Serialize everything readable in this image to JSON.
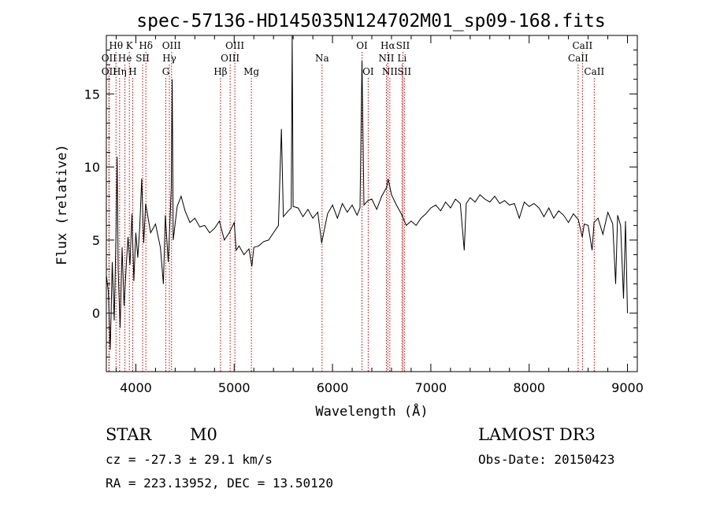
{
  "chart_data": {
    "type": "line",
    "title": "spec-57136-HD145035N124702M01_sp09-168.fits",
    "xlabel": "Wavelength (Å)",
    "ylabel": "Flux (relative)",
    "xlim": [
      3700,
      9100
    ],
    "ylim": [
      -4,
      19
    ],
    "xticks": [
      4000,
      5000,
      6000,
      7000,
      8000,
      9000
    ],
    "yticks": [
      0,
      5,
      10,
      15
    ],
    "grid": false,
    "series": [
      {
        "name": "spectrum",
        "points": [
          [
            3700,
            2.6
          ],
          [
            3720,
            1.5
          ],
          [
            3740,
            -2.5
          ],
          [
            3760,
            3.5
          ],
          [
            3780,
            -0.5
          ],
          [
            3800,
            6.0
          ],
          [
            3810,
            10.7
          ],
          [
            3820,
            3.0
          ],
          [
            3840,
            -1.0
          ],
          [
            3860,
            4.5
          ],
          [
            3880,
            0.5
          ],
          [
            3900,
            3.0
          ],
          [
            3920,
            5.2
          ],
          [
            3940,
            3.3
          ],
          [
            3960,
            6.8
          ],
          [
            3980,
            2.2
          ],
          [
            4000,
            5.5
          ],
          [
            4020,
            3.8
          ],
          [
            4040,
            5.9
          ],
          [
            4060,
            9.2
          ],
          [
            4080,
            4.8
          ],
          [
            4100,
            7.5
          ],
          [
            4150,
            5.5
          ],
          [
            4200,
            6.1
          ],
          [
            4250,
            4.5
          ],
          [
            4280,
            2.0
          ],
          [
            4300,
            6.7
          ],
          [
            4330,
            3.5
          ],
          [
            4360,
            8.5
          ],
          [
            4370,
            16.0
          ],
          [
            4380,
            5.0
          ],
          [
            4420,
            7.3
          ],
          [
            4460,
            8.0
          ],
          [
            4500,
            7.0
          ],
          [
            4550,
            6.2
          ],
          [
            4600,
            6.5
          ],
          [
            4650,
            5.9
          ],
          [
            4700,
            6.0
          ],
          [
            4750,
            5.5
          ],
          [
            4800,
            5.8
          ],
          [
            4850,
            6.3
          ],
          [
            4900,
            5.0
          ],
          [
            4950,
            5.5
          ],
          [
            5000,
            6.2
          ],
          [
            5020,
            4.3
          ],
          [
            5050,
            4.6
          ],
          [
            5100,
            4.0
          ],
          [
            5150,
            4.4
          ],
          [
            5180,
            3.2
          ],
          [
            5200,
            4.5
          ],
          [
            5250,
            4.6
          ],
          [
            5300,
            4.9
          ],
          [
            5350,
            5.0
          ],
          [
            5400,
            5.5
          ],
          [
            5450,
            6.0
          ],
          [
            5480,
            12.6
          ],
          [
            5500,
            6.6
          ],
          [
            5550,
            7.0
          ],
          [
            5580,
            7.2
          ],
          [
            5590,
            19.0
          ],
          [
            5600,
            7.3
          ],
          [
            5650,
            7.2
          ],
          [
            5700,
            6.6
          ],
          [
            5750,
            7.1
          ],
          [
            5800,
            6.5
          ],
          [
            5850,
            6.9
          ],
          [
            5890,
            4.8
          ],
          [
            5950,
            6.8
          ],
          [
            6000,
            7.4
          ],
          [
            6050,
            6.5
          ],
          [
            6100,
            7.5
          ],
          [
            6150,
            6.9
          ],
          [
            6200,
            7.4
          ],
          [
            6250,
            6.7
          ],
          [
            6280,
            7.2
          ],
          [
            6300,
            17.3
          ],
          [
            6320,
            7.4
          ],
          [
            6360,
            7.7
          ],
          [
            6400,
            7.8
          ],
          [
            6450,
            7.1
          ],
          [
            6500,
            8.0
          ],
          [
            6550,
            8.6
          ],
          [
            6565,
            9.2
          ],
          [
            6600,
            8.1
          ],
          [
            6650,
            7.4
          ],
          [
            6700,
            6.8
          ],
          [
            6750,
            6.0
          ],
          [
            6800,
            6.3
          ],
          [
            6850,
            6.0
          ],
          [
            6900,
            6.5
          ],
          [
            6950,
            6.8
          ],
          [
            7000,
            7.2
          ],
          [
            7050,
            7.4
          ],
          [
            7100,
            7.0
          ],
          [
            7150,
            7.6
          ],
          [
            7200,
            7.2
          ],
          [
            7250,
            7.8
          ],
          [
            7300,
            7.5
          ],
          [
            7340,
            4.3
          ],
          [
            7360,
            7.5
          ],
          [
            7400,
            7.9
          ],
          [
            7450,
            7.6
          ],
          [
            7500,
            8.1
          ],
          [
            7550,
            7.8
          ],
          [
            7600,
            7.6
          ],
          [
            7650,
            8.0
          ],
          [
            7700,
            7.5
          ],
          [
            7750,
            7.7
          ],
          [
            7800,
            7.4
          ],
          [
            7850,
            7.5
          ],
          [
            7900,
            6.5
          ],
          [
            7950,
            7.6
          ],
          [
            8000,
            7.3
          ],
          [
            8050,
            7.5
          ],
          [
            8100,
            7.2
          ],
          [
            8150,
            6.6
          ],
          [
            8200,
            7.2
          ],
          [
            8250,
            6.5
          ],
          [
            8300,
            7.0
          ],
          [
            8350,
            6.7
          ],
          [
            8400,
            6.2
          ],
          [
            8450,
            6.8
          ],
          [
            8500,
            6.4
          ],
          [
            8540,
            5.2
          ],
          [
            8560,
            6.1
          ],
          [
            8600,
            6.0
          ],
          [
            8640,
            4.3
          ],
          [
            8660,
            6.2
          ],
          [
            8700,
            6.5
          ],
          [
            8750,
            5.4
          ],
          [
            8800,
            6.9
          ],
          [
            8850,
            6.1
          ],
          [
            8880,
            2.0
          ],
          [
            8900,
            6.7
          ],
          [
            8930,
            6.0
          ],
          [
            8960,
            1.0
          ],
          [
            8980,
            6.3
          ],
          [
            9000,
            0.0
          ]
        ]
      }
    ],
    "lines": [
      {
        "label": "OII",
        "x": 3727,
        "row": 1
      },
      {
        "label": "OII",
        "x": 3727,
        "row": 2
      },
      {
        "label": "Hθ",
        "x": 3798,
        "row": 0
      },
      {
        "label": "Hη",
        "x": 3835,
        "row": 2
      },
      {
        "label": "He",
        "x": 3889,
        "row": 1
      },
      {
        "label": "K",
        "x": 3934,
        "row": 0
      },
      {
        "label": "H",
        "x": 3968,
        "row": 2
      },
      {
        "label": "SII",
        "x": 4069,
        "row": 1
      },
      {
        "label": "Hδ",
        "x": 4102,
        "row": 0
      },
      {
        "label": "G",
        "x": 4305,
        "row": 2
      },
      {
        "label": "Hγ",
        "x": 4341,
        "row": 1
      },
      {
        "label": "OIII",
        "x": 4363,
        "row": 0
      },
      {
        "label": "Hβ",
        "x": 4861,
        "row": 2
      },
      {
        "label": "OIII",
        "x": 4959,
        "row": 1
      },
      {
        "label": "OIII",
        "x": 5007,
        "row": 0
      },
      {
        "label": "Mg",
        "x": 5175,
        "row": 2
      },
      {
        "label": "Na",
        "x": 5894,
        "row": 1
      },
      {
        "label": "OI",
        "x": 6300,
        "row": 0
      },
      {
        "label": "OI",
        "x": 6363,
        "row": 2
      },
      {
        "label": "NII",
        "x": 6548,
        "row": 1
      },
      {
        "label": "Hα",
        "x": 6563,
        "row": 0
      },
      {
        "label": "NII",
        "x": 6583,
        "row": 2
      },
      {
        "label": "Li",
        "x": 6707,
        "row": 1
      },
      {
        "label": "SII",
        "x": 6716,
        "row": 0
      },
      {
        "label": "SII",
        "x": 6731,
        "row": 2
      },
      {
        "label": "CaII",
        "x": 8498,
        "row": 1
      },
      {
        "label": "CaII",
        "x": 8542,
        "row": 0
      },
      {
        "label": "CaII",
        "x": 8662,
        "row": 2
      }
    ]
  },
  "info": {
    "object_class": "STAR",
    "subclass": "M0",
    "survey": "LAMOST DR3",
    "cz": "cz = -27.3 ± 29.1 km/s",
    "obs_date": "Obs-Date: 20150423",
    "coords": "RA = 223.13952, DEC =  13.50120"
  }
}
